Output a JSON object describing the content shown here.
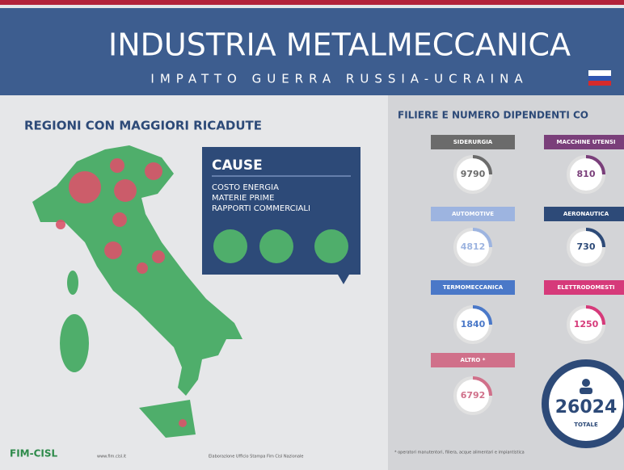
{
  "header": {
    "title": "INDUSTRIA METALMECCANICA",
    "subtitle": "IMPATTO GUERRA RUSSIA-UCRAINA"
  },
  "map": {
    "heading": "REGIONI CON MAGGIORI RICADUTE"
  },
  "causes": {
    "heading": "CAUSE",
    "items": [
      "COSTO ENERGIA",
      "MATERIE PRIME",
      "RAPPORTI COMMERCIALI"
    ]
  },
  "sectors": {
    "heading": "FILIERE E NUMERO DIPENDENTI CO",
    "items": [
      {
        "label": "SIDERURGIA",
        "value": "9790",
        "color": "#6b6b6b"
      },
      {
        "label": "MACCHINE UTENSI",
        "value": "810",
        "color": "#7a3f7a"
      },
      {
        "label": "AUTOMOTIVE",
        "value": "4812",
        "color": "#9db4e0"
      },
      {
        "label": "AERONAUTICA",
        "value": "730",
        "color": "#2d4a78"
      },
      {
        "label": "TERMOMECCANICA",
        "value": "1840",
        "color": "#4a78c8"
      },
      {
        "label": "ELETTRODOMESTI",
        "value": "1250",
        "color": "#d63a7a"
      },
      {
        "label": "ALTRO *",
        "value": "6792",
        "color": "#d0708a"
      }
    ],
    "total": {
      "value": "26024",
      "label": "TOTALE"
    },
    "footnote": "* operatori manutentori, filiera, acque alimentari e impiantistica"
  },
  "footer": {
    "logo": "FIM-CISL",
    "website": "www.fim.cisl.it",
    "credit": "Elaborazione Ufficio Stampa Fim Cisl Nazionale"
  }
}
